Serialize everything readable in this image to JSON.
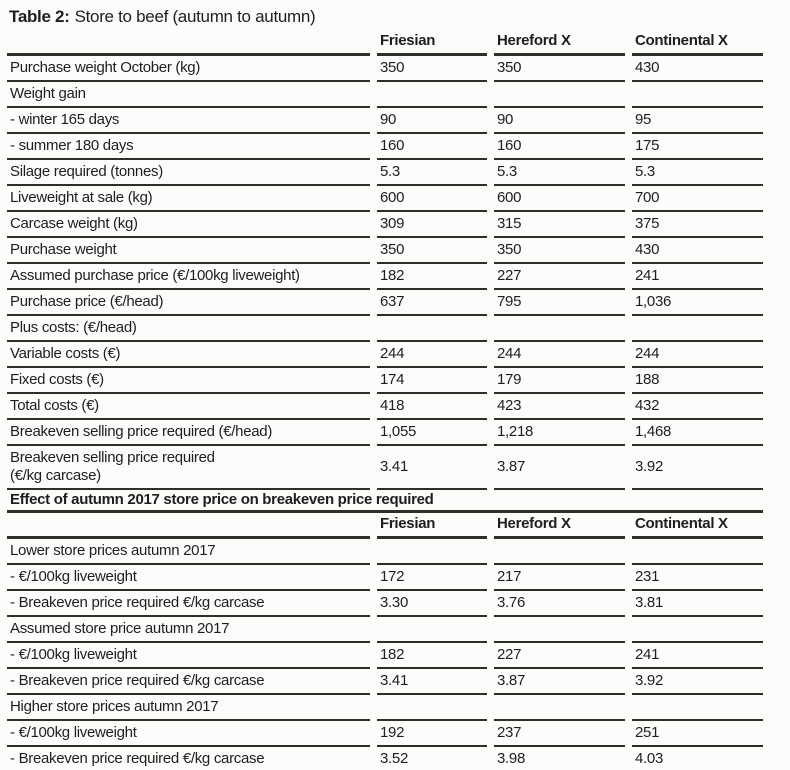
{
  "title": {
    "prefix": "Table 2:",
    "text": "Store to beef (autumn to autumn)"
  },
  "columns": [
    "Friesian",
    "Hereford X",
    "Continental X"
  ],
  "colors": {
    "text": "#1e1e1c",
    "rule": "#2f2f2a",
    "background": "#fcfcfb"
  },
  "table_data": {
    "type": "table",
    "sections": [
      {
        "header_columns": [
          "Friesian",
          "Hereford X",
          "Continental X"
        ],
        "rows": [
          {
            "label": "Purchase weight October (kg)",
            "values": [
              "350",
              "350",
              "430"
            ]
          },
          {
            "label": "Weight gain",
            "kind": "section",
            "values": [
              "",
              "",
              ""
            ]
          },
          {
            "label": "- winter 165 days",
            "values": [
              "90",
              "90",
              "95"
            ]
          },
          {
            "label": "- summer 180 days",
            "values": [
              "160",
              "160",
              "175"
            ]
          },
          {
            "label": "Silage required (tonnes)",
            "values": [
              "5.3",
              "5.3",
              "5.3"
            ]
          },
          {
            "label": "Liveweight at sale (kg)",
            "values": [
              "600",
              "600",
              "700"
            ]
          },
          {
            "label": "Carcase weight (kg)",
            "values": [
              "309",
              "315",
              "375"
            ]
          },
          {
            "label": "Purchase weight",
            "values": [
              "350",
              "350",
              "430"
            ]
          },
          {
            "label": "Assumed purchase price (€/100kg liveweight)",
            "values": [
              "182",
              "227",
              "241"
            ]
          },
          {
            "label": "Purchase price (€/head)",
            "values": [
              "637",
              "795",
              "1,036"
            ]
          },
          {
            "label": "Plus costs: (€/head)",
            "kind": "section",
            "values": [
              "",
              "",
              ""
            ]
          },
          {
            "label": "Variable costs (€)",
            "values": [
              "244",
              "244",
              "244"
            ]
          },
          {
            "label": "Fixed costs (€)",
            "values": [
              "174",
              "179",
              "188"
            ]
          },
          {
            "label": "Total costs (€)",
            "values": [
              "418",
              "423",
              "432"
            ]
          },
          {
            "label": "Breakeven selling price required (€/head)",
            "values": [
              "1,055",
              "1,218",
              "1,468"
            ]
          },
          {
            "label": "Breakeven selling price required\n(€/kg carcase)",
            "values": [
              "3.41",
              "3.87",
              "3.92"
            ]
          }
        ]
      },
      {
        "heading": "Effect of autumn 2017 store price on breakeven price required",
        "header_columns": [
          "Friesian",
          "Hereford X",
          "Continental X"
        ],
        "rows": [
          {
            "label": "Lower store prices autumn 2017",
            "kind": "section",
            "values": [
              "",
              "",
              ""
            ]
          },
          {
            "label": "- €/100kg liveweight",
            "values": [
              "172",
              "217",
              "231"
            ]
          },
          {
            "label": "- Breakeven price required €/kg carcase",
            "values": [
              "3.30",
              "3.76",
              "3.81"
            ]
          },
          {
            "label": "Assumed store price autumn 2017",
            "kind": "section",
            "values": [
              "",
              "",
              ""
            ]
          },
          {
            "label": "- €/100kg liveweight",
            "values": [
              "182",
              "227",
              "241"
            ]
          },
          {
            "label": "- Breakeven price required €/kg carcase",
            "values": [
              "3.41",
              "3.87",
              "3.92"
            ]
          },
          {
            "label": "Higher store prices autumn 2017",
            "kind": "section",
            "values": [
              "",
              "",
              ""
            ]
          },
          {
            "label": "- €/100kg liveweight",
            "values": [
              "192",
              "237",
              "251"
            ]
          },
          {
            "label": "- Breakeven price required €/kg carcase",
            "values": [
              "3.52",
              "3.98",
              "4.03"
            ]
          }
        ]
      }
    ]
  }
}
